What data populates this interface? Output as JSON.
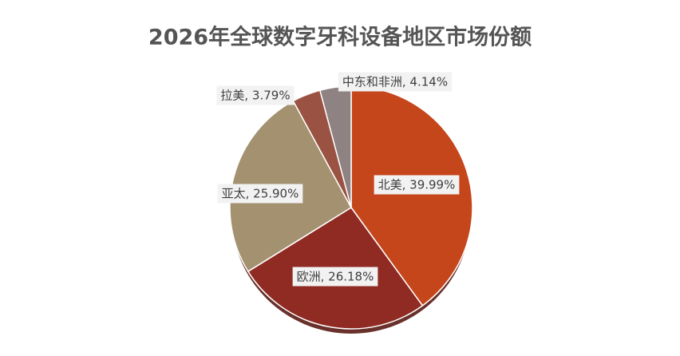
{
  "chart_data": {
    "type": "pie",
    "title": "2026年全球数字牙科设备地区市场份额",
    "values": [
      39.99,
      26.18,
      25.9,
      3.79,
      4.14
    ],
    "value_labels": [
      "北美, 39.99%",
      "欧洲, 26.18%",
      "亚太, 25.90%",
      "拉美, 3.79%",
      "中东和非洲, 4.14%"
    ],
    "colors": [
      "#c5461b",
      "#8f2b23",
      "#a39170",
      "#9a5242",
      "#8f8282"
    ]
  }
}
